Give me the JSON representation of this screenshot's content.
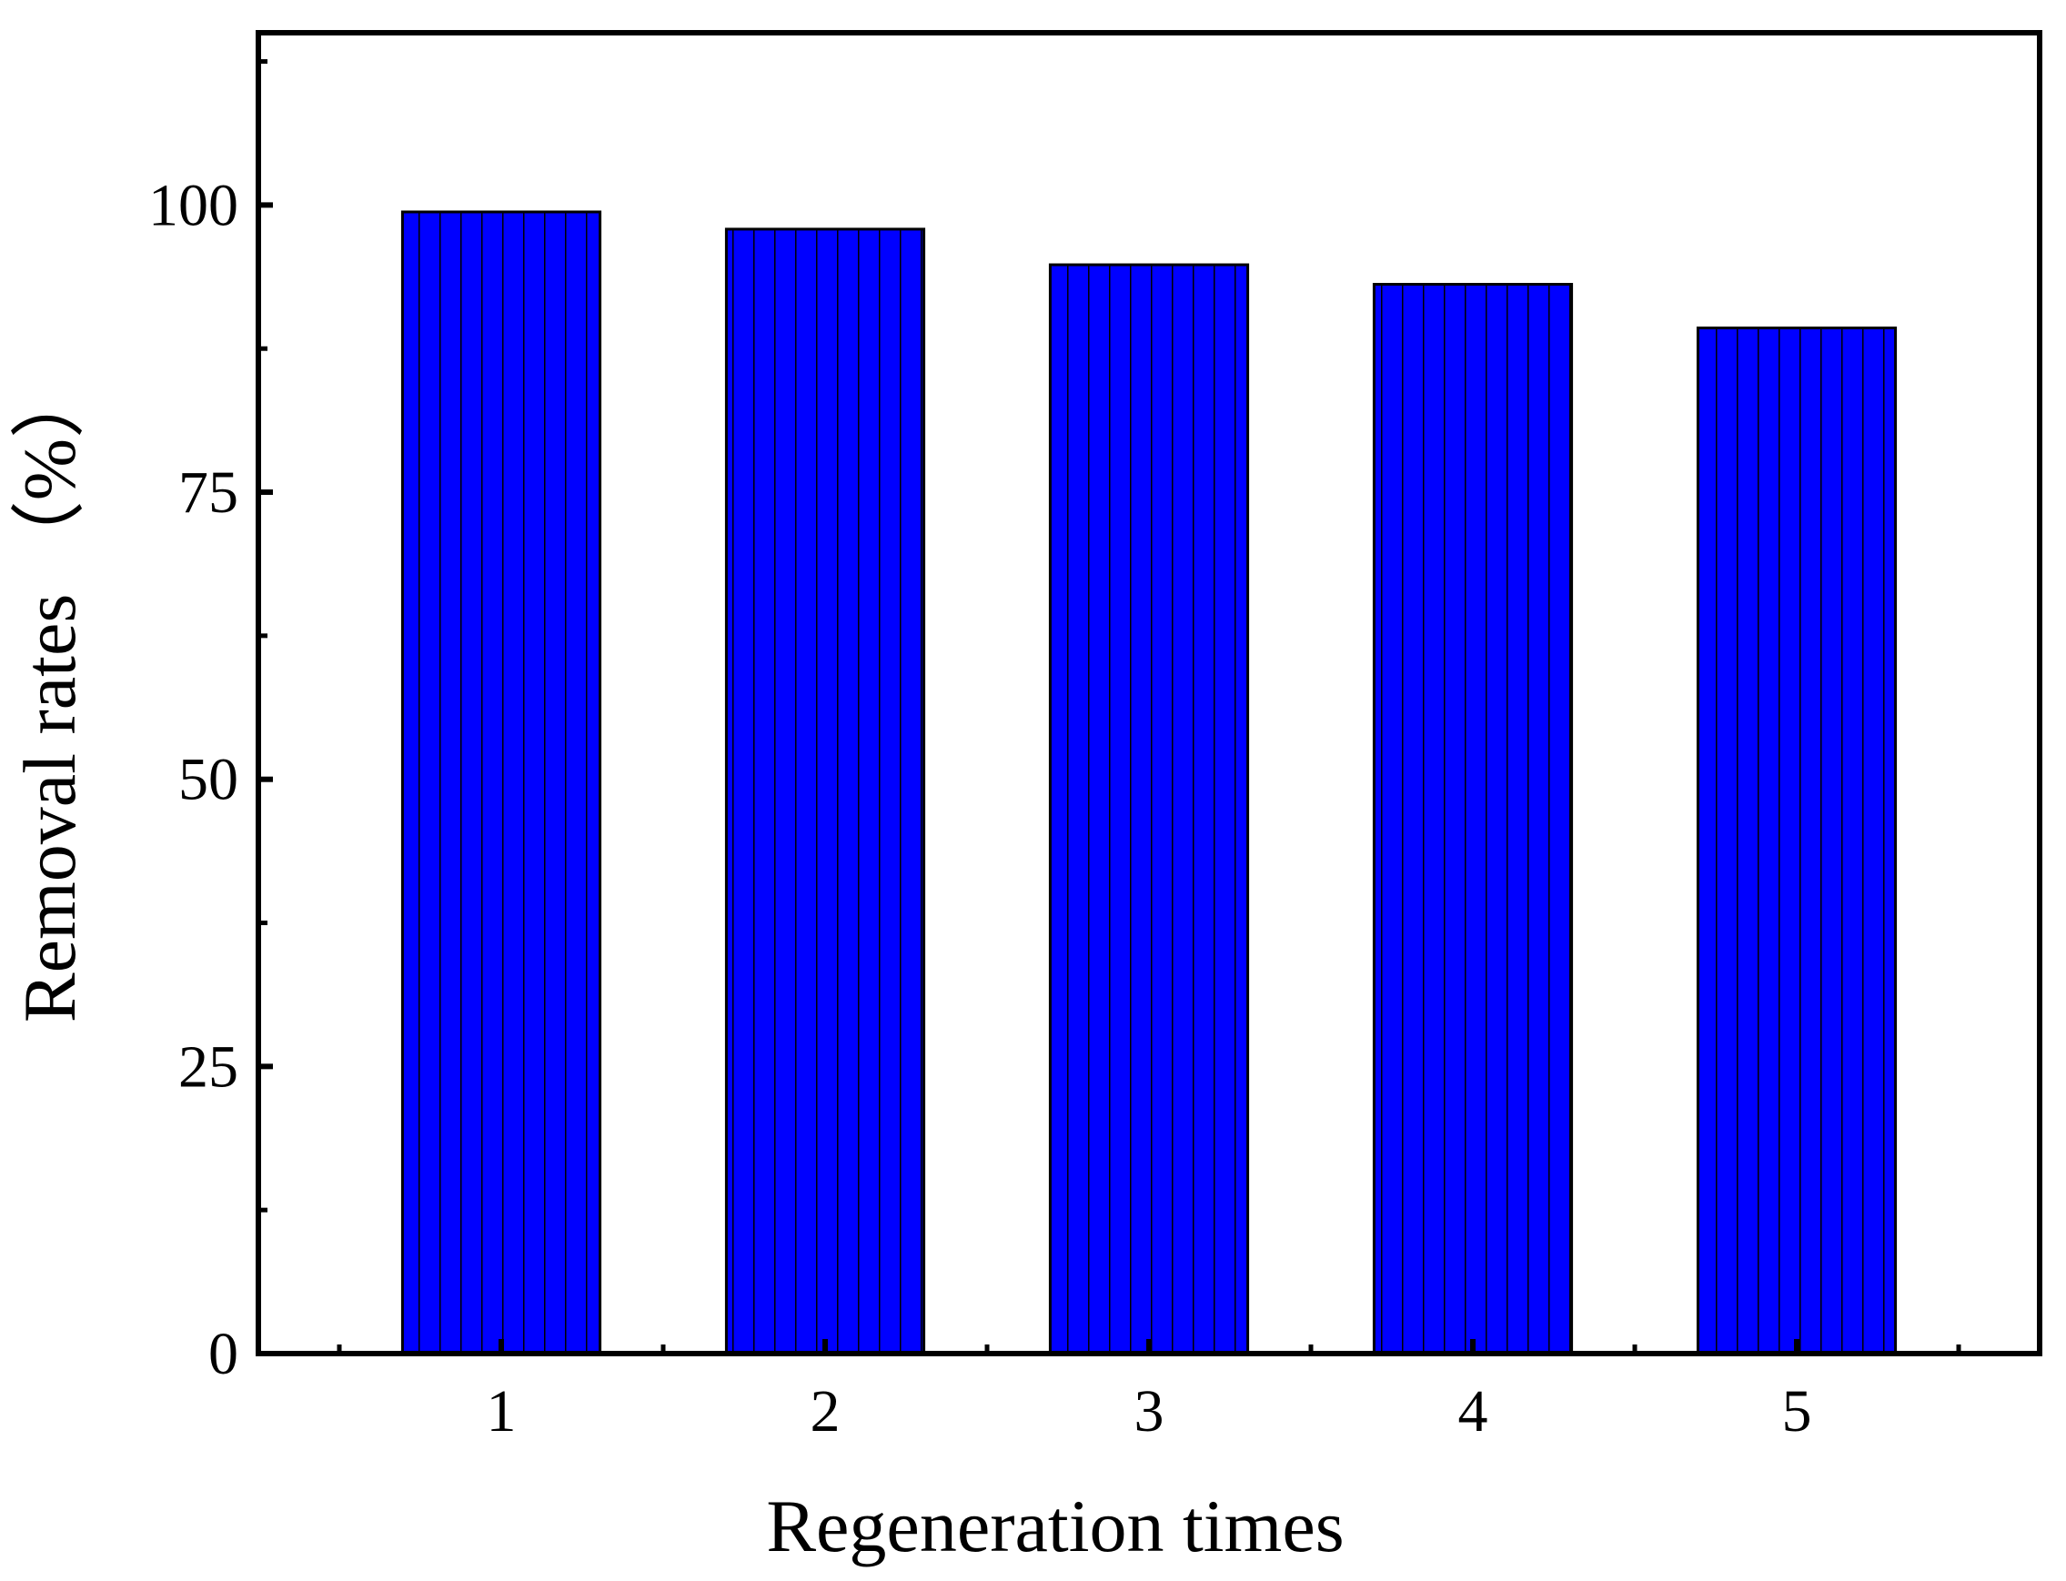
{
  "chart_data": {
    "type": "bar",
    "x": [
      1,
      2,
      3,
      4,
      5
    ],
    "values": [
      99.4,
      97.9,
      94.8,
      93.1,
      89.3
    ],
    "color": "#0000ff",
    "xlim": [
      0.25,
      5.75
    ],
    "xticks": [
      1,
      2,
      3,
      4,
      5
    ],
    "ylim": [
      0,
      115
    ],
    "yticks": [
      0,
      25,
      50,
      75,
      100
    ],
    "xlabel": "Regeneration times",
    "ylabel": "Removal rates （%）"
  }
}
